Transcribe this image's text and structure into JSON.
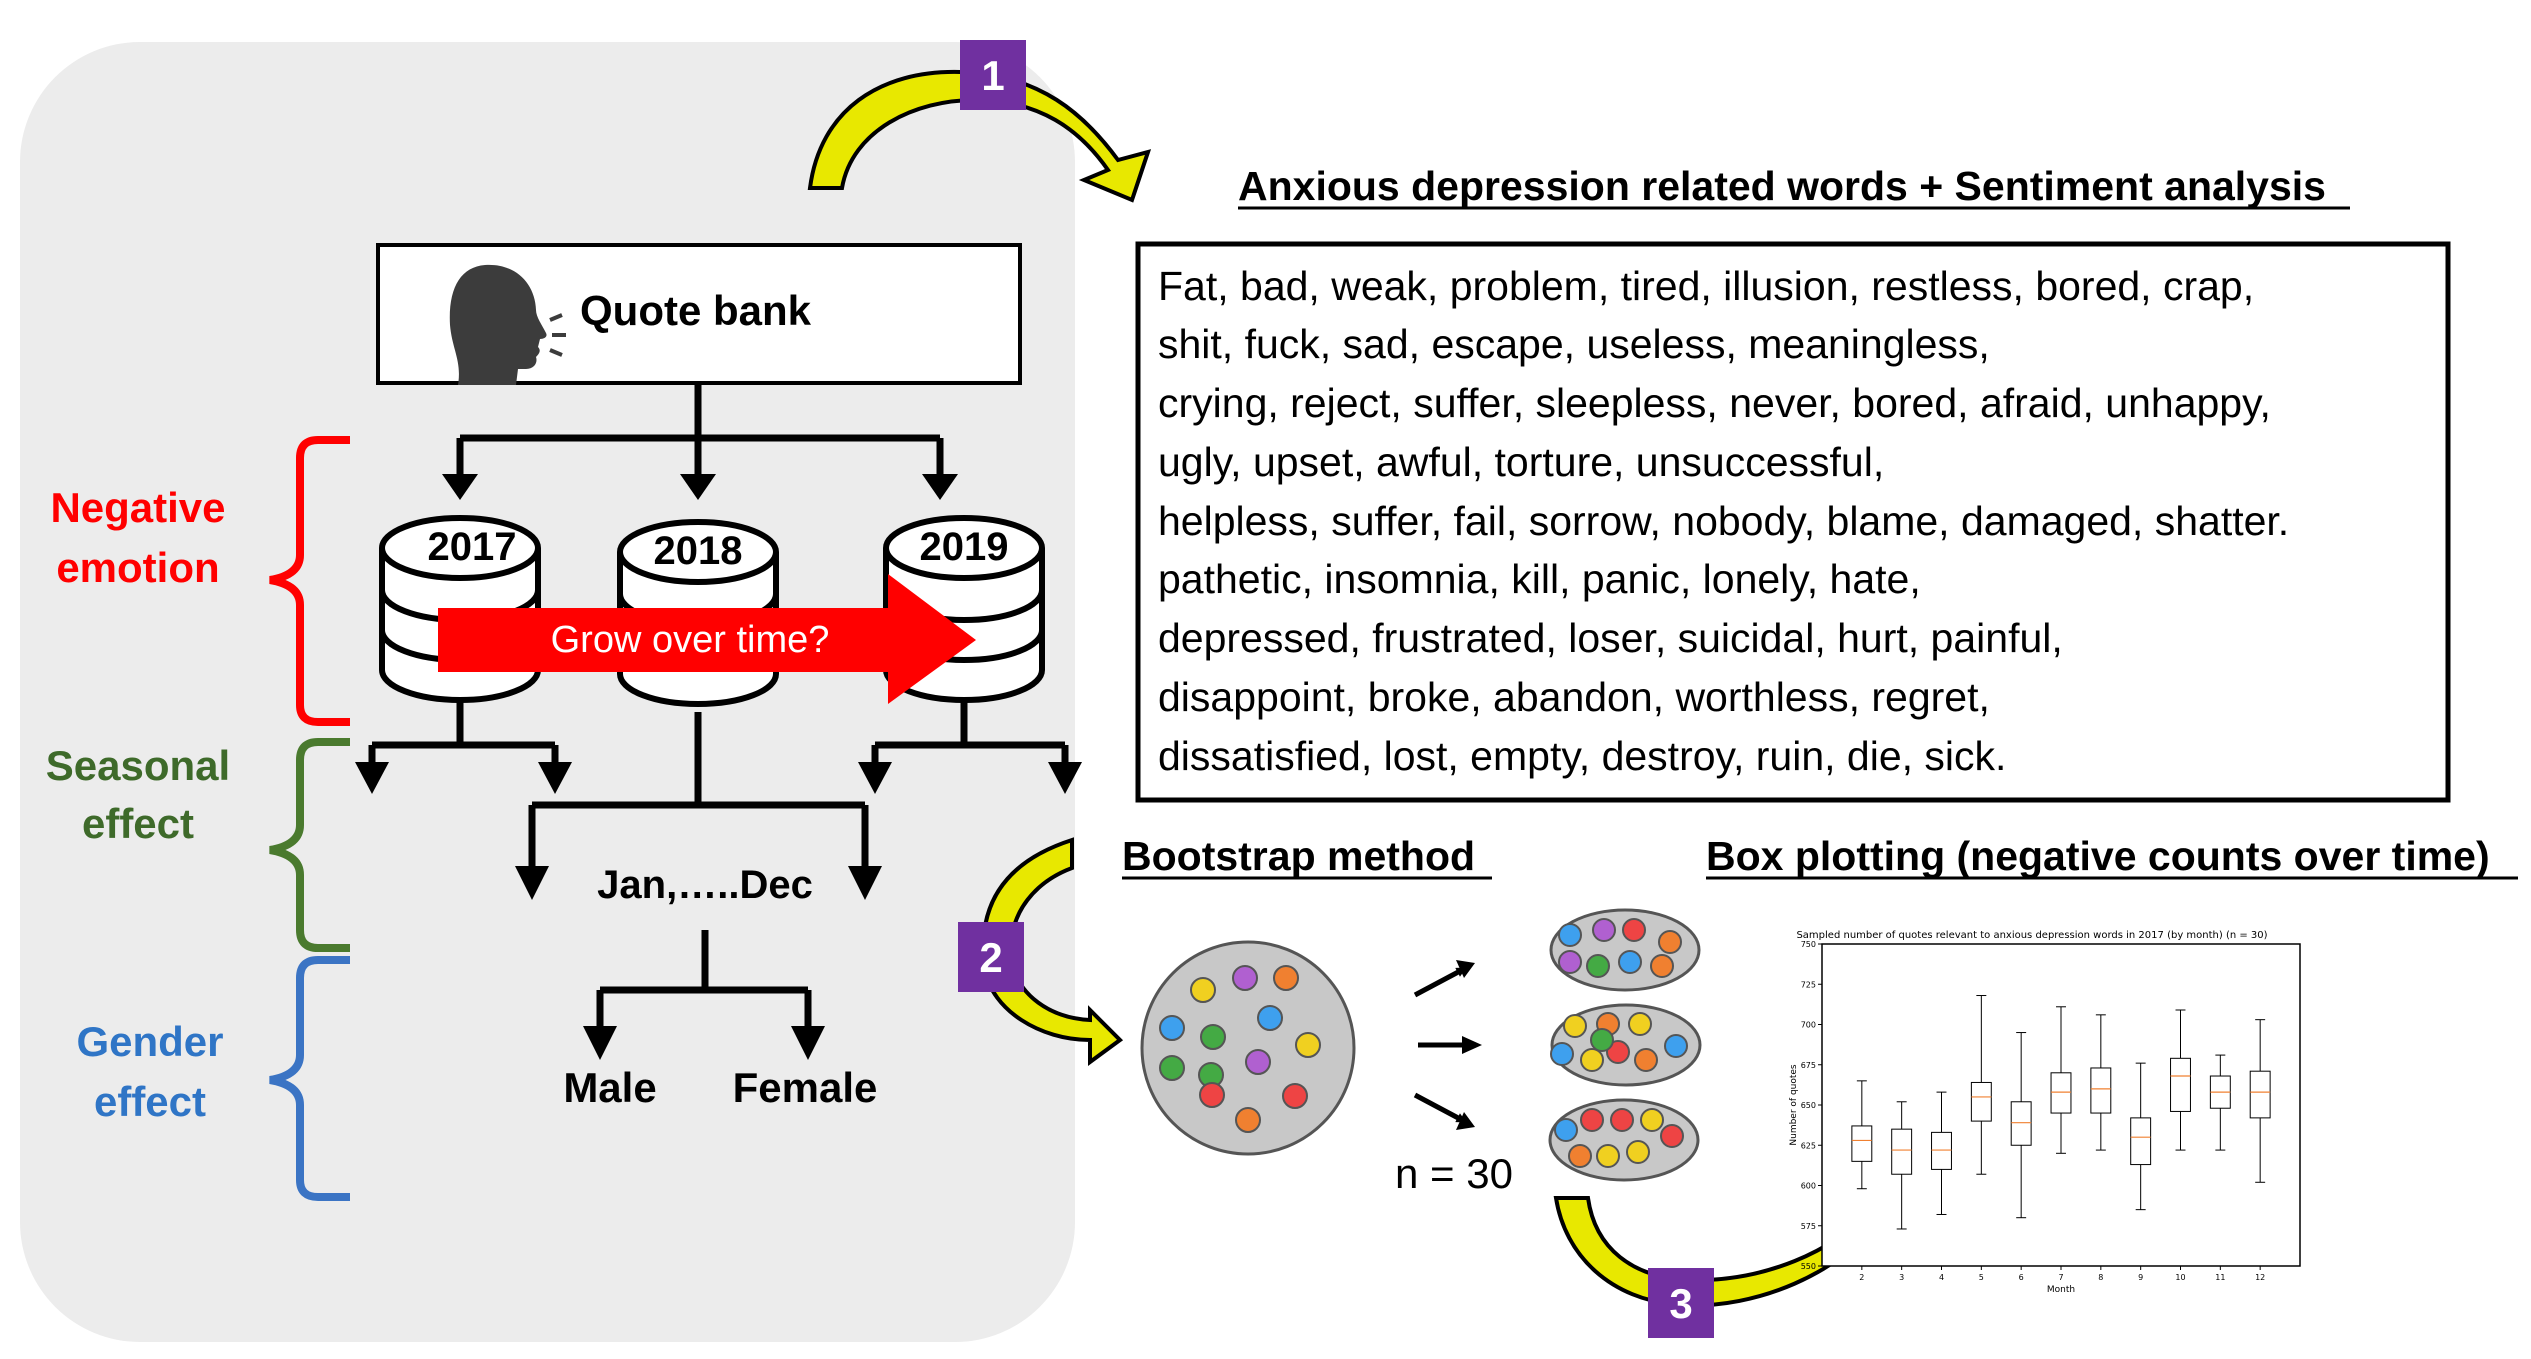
{
  "steps": {
    "step1": "1",
    "step2": "2",
    "step3": "3"
  },
  "quote_bank": {
    "label": "Quote bank",
    "icon": "speaking-head-icon"
  },
  "years": [
    "2017",
    "2018",
    "2019"
  ],
  "grow_label": "Grow over time?",
  "months_label": "Jan,…..Dec",
  "genders": [
    "Male",
    "Female"
  ],
  "side_labels": {
    "negative": [
      "Negative",
      "emotion"
    ],
    "seasonal": [
      "Seasonal",
      "effect"
    ],
    "gender": [
      "Gender",
      "effect"
    ]
  },
  "words_panel": {
    "title": "Anxious depression related words + Sentiment analysis",
    "lines": [
      "Fat, bad, weak, problem, tired, illusion, restless, bored, crap,",
      "shit, fuck, sad, escape, useless, meaningless,",
      "crying, reject, suffer, sleepless, never, bored, afraid, unhappy,",
      "ugly, upset, awful, torture, unsuccessful,",
      "helpless, suffer, fail, sorrow, nobody, blame, damaged, shatter.",
      "pathetic, insomnia, kill, panic, lonely, hate,",
      "depressed,  frustrated,  loser,  suicidal,  hurt,  painful,",
      "disappoint,  broke,  abandon,  worthless,  regret,",
      "dissatisfied, lost, empty, destroy, ruin, die, sick."
    ]
  },
  "bootstrap": {
    "title": "Bootstrap method",
    "n_label": "n = 30"
  },
  "boxplot_section": {
    "title": "Box plotting (negative counts over time)"
  },
  "colors": {
    "panel_bg": "#ececec",
    "negative": "#ff0000",
    "seasonal": "#3e7a2e",
    "gender": "#2f75c6",
    "badge": "#7030a0",
    "arrow_fill": "#e8e800",
    "grow_arrow": "#ff0000",
    "dot_blue": "#3ea0ee",
    "dot_green": "#44aa44",
    "dot_red": "#ee4444",
    "dot_orange": "#f08030",
    "dot_yellow": "#f0d020",
    "dot_purple": "#b060d0"
  },
  "chart_data": {
    "type": "box",
    "title": "Sampled number of quotes relevant to anxious depression words in 2017 (by month) (n = 30)",
    "xlabel": "Month",
    "ylabel": "Number of quotes",
    "ylim": [
      550,
      750
    ],
    "yticks": [
      "550",
      "575",
      "600",
      "625",
      "650",
      "675",
      "700",
      "725",
      "750"
    ],
    "categories": [
      "2",
      "3",
      "4",
      "5",
      "6",
      "7",
      "8",
      "9",
      "10",
      "11",
      "12"
    ],
    "boxes": [
      {
        "min": 598,
        "q1": 615,
        "median": 628,
        "q3": 637,
        "max": 665
      },
      {
        "min": 573,
        "q1": 607,
        "median": 622,
        "q3": 635,
        "max": 652
      },
      {
        "min": 582,
        "q1": 610,
        "median": 622,
        "q3": 633,
        "max": 658
      },
      {
        "min": 607,
        "q1": 640,
        "median": 655,
        "q3": 664,
        "max": 718
      },
      {
        "min": 580,
        "q1": 625,
        "median": 639,
        "q3": 652,
        "max": 695
      },
      {
        "min": 620,
        "q1": 645,
        "median": 658,
        "q3": 670,
        "max": 711
      },
      {
        "min": 622,
        "q1": 645,
        "median": 660,
        "q3": 673,
        "max": 706
      },
      {
        "min": 585,
        "q1": 613,
        "median": 630,
        "q3": 642,
        "max": 676
      },
      {
        "min": 622,
        "q1": 646,
        "median": 668,
        "q3": 679,
        "max": 709
      },
      {
        "min": 622,
        "q1": 648,
        "median": 658,
        "q3": 668,
        "max": 681
      },
      {
        "min": 602,
        "q1": 642,
        "median": 658,
        "q3": 671,
        "max": 703
      }
    ]
  }
}
